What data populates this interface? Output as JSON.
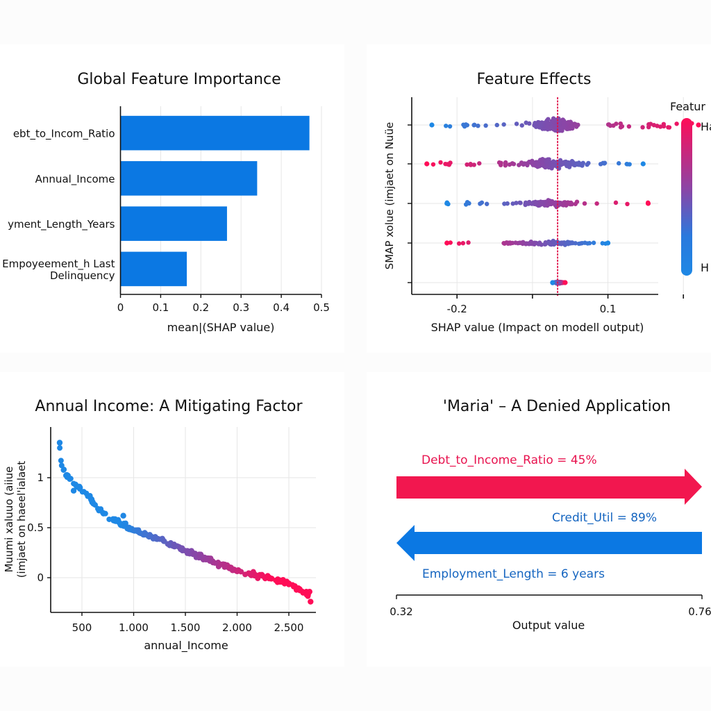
{
  "colors": {
    "positive": "#ff0d57",
    "negative": "#1e88e5",
    "bar": "#0b78e3",
    "base_line": "#e0144c"
  },
  "chart_data": [
    {
      "id": "global-importance",
      "type": "bar",
      "orientation": "horizontal",
      "title": "Global Feature Importance",
      "xlabel": "mean|(SHAP value)",
      "ylabel": "",
      "categories": [
        "ebt_to_Incom_Ratio",
        "Annual_Income",
        "yment_Length_Years",
        "Empoyeement_h Last Delinquency"
      ],
      "category_lines": [
        [
          "ebt_to_Incom_Ratio"
        ],
        [
          "Annual_Income"
        ],
        [
          "yment_Length_Years"
        ],
        [
          "Empoyeement_h Last",
          "Delinquency"
        ]
      ],
      "values": [
        0.47,
        0.34,
        0.265,
        0.165
      ],
      "xlim": [
        0,
        0.5
      ],
      "xticks": [
        0,
        0.1,
        0.2,
        0.3,
        0.4,
        0.5
      ],
      "xtick_labels": [
        "0",
        "0.1",
        "0.2",
        "0.3",
        "0.4",
        "0.5"
      ],
      "grid": true
    },
    {
      "id": "feature-effects",
      "type": "scatter",
      "subtype": "beeswarm",
      "title": "Feature Effects",
      "xlabel": "SHAP value (Impact on modell output)",
      "ylabel": "SMAP xolue (imjaet on Nuüe",
      "xlim": [
        -0.29,
        0.2
      ],
      "xticks": [
        -0.2,
        -0.05,
        0.1,
        0.25
      ],
      "xtick_labels": [
        "-0.2",
        "",
        "0.1",
        ""
      ],
      "base_value": 0,
      "colorbar": {
        "title": "Featur",
        "high_label": "Ha",
        "low_label": "H"
      },
      "rows": [
        {
          "min": -0.25,
          "max": 0.28,
          "core": [
            -0.06,
            0.05
          ],
          "low_color_side": "left",
          "spread": 1.0
        },
        {
          "min": -0.26,
          "max": 0.17,
          "core": [
            -0.09,
            0.06
          ],
          "low_color_side": "right",
          "spread": 0.8
        },
        {
          "min": -0.22,
          "max": 0.18,
          "core": [
            -0.08,
            0.05
          ],
          "low_color_side": "left",
          "spread": 0.55
        },
        {
          "min": -0.22,
          "max": 0.1,
          "core": [
            -0.12,
            0.08
          ],
          "low_color_side": "right",
          "spread": 0.35
        },
        {
          "min": -0.01,
          "max": 0.015,
          "core": [
            -0.01,
            0.015
          ],
          "low_color_side": "left",
          "spread": 0.2
        }
      ]
    },
    {
      "id": "annual-income-dependence",
      "type": "scatter",
      "title": "Annual Income: A Mitigating Factor",
      "xlabel": "annual_Income",
      "ylabel_lines": [
        "Muumi xaluuo (aiiue",
        "(imjaet on haeel'ialaet"
      ],
      "xlim": [
        200,
        2780
      ],
      "ylim": [
        -0.35,
        1.5
      ],
      "xticks": [
        500,
        1000,
        1500,
        2000,
        2500
      ],
      "xtick_labels": [
        "500",
        "1.000",
        "1.500",
        "2.000",
        "2.500"
      ],
      "yticks": [
        0,
        0.5,
        1
      ],
      "ytick_labels": [
        "0",
        "0.5",
        "1"
      ],
      "trend": [
        [
          280,
          1.35
        ],
        [
          300,
          1.15
        ],
        [
          350,
          1.02
        ],
        [
          450,
          0.92
        ],
        [
          550,
          0.84
        ],
        [
          650,
          0.68
        ],
        [
          800,
          0.58
        ],
        [
          1000,
          0.47
        ],
        [
          1200,
          0.41
        ],
        [
          1500,
          0.27
        ],
        [
          1800,
          0.15
        ],
        [
          2000,
          0.07
        ],
        [
          2300,
          0.0
        ],
        [
          2500,
          -0.06
        ],
        [
          2700,
          -0.18
        ]
      ],
      "outliers": [
        [
          285,
          1.35
        ],
        [
          2700,
          -0.14
        ],
        [
          2710,
          -0.24
        ],
        [
          900,
          0.62
        ],
        [
          420,
          0.87
        ]
      ],
      "n_points": 260,
      "color_by": "annual_Income"
    },
    {
      "id": "maria-force-plot",
      "type": "bar",
      "subtype": "force",
      "title": "'Maria' – A Denied Application",
      "xlabel": "Output value",
      "xlim": [
        0.32,
        0.76
      ],
      "xtick_labels": [
        "0.32",
        "0.76"
      ],
      "forces": [
        {
          "label": "Debt_to_Income_Ratio = 45%",
          "from": 0.32,
          "to": 0.76,
          "direction": "increase"
        },
        {
          "label": "Credit_Util = 89%",
          "from": 0.76,
          "to": 0.32,
          "direction": "decrease"
        }
      ],
      "annotations": [
        "Employment_Length = 6 years"
      ]
    }
  ]
}
